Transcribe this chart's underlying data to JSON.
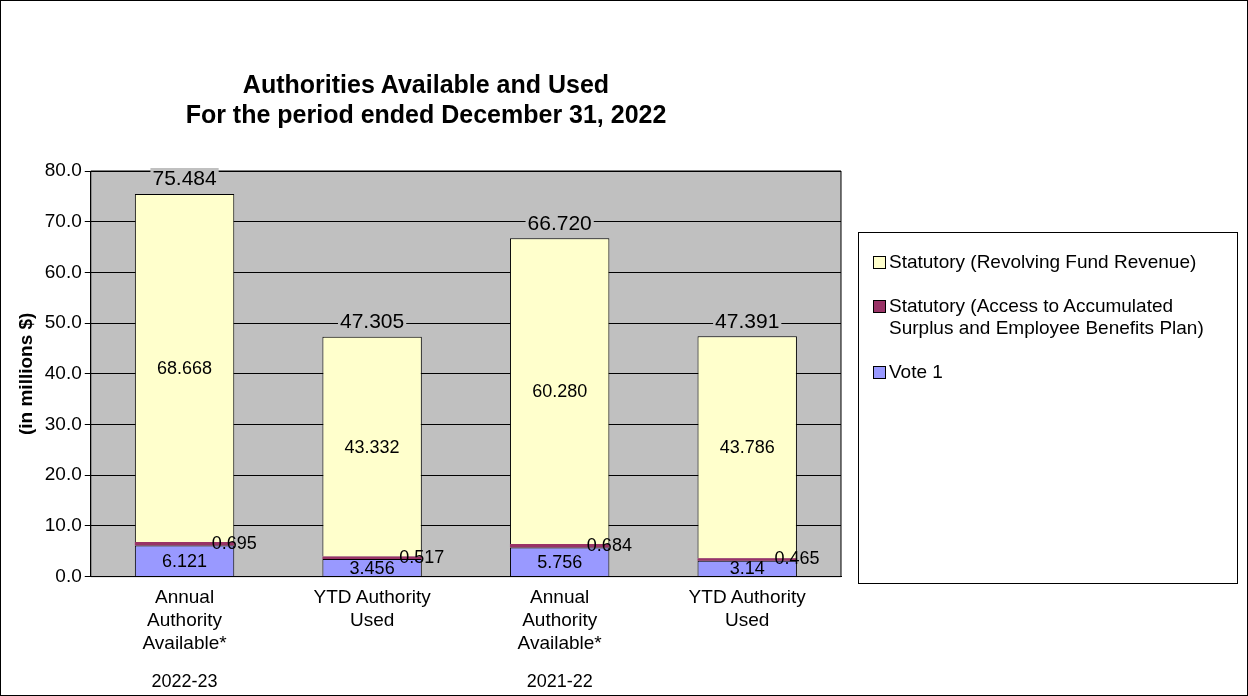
{
  "chart_data": {
    "type": "bar",
    "title": "Authorities Available and Used\nFor the period ended December 31, 2022",
    "ylabel": "(in millions $)",
    "categories": [
      "Annual Authority Available*",
      "YTD Authority Used",
      "Annual Authority Available*",
      "YTD Authority Used"
    ],
    "series": [
      {
        "name": "Vote 1",
        "color": "#9999ff",
        "values": [
          6.121,
          3.456,
          5.756,
          3.14
        ],
        "value_labels": [
          "6.121",
          "3.456",
          "5.756",
          "3.14"
        ]
      },
      {
        "name": "Statutory (Access to Accumulated Surplus and Employee Benefits Plan)",
        "color": "#993366",
        "values": [
          0.695,
          0.517,
          0.684,
          0.465
        ],
        "value_labels": [
          "0.695",
          "0.517",
          "0.684",
          "0.465"
        ]
      },
      {
        "name": "Statutory (Revolving Fund Revenue)",
        "color": "#ffffcc",
        "values": [
          68.668,
          43.332,
          60.28,
          43.786
        ],
        "value_labels": [
          "68.668",
          "43.332",
          "60.280",
          "43.786"
        ]
      }
    ],
    "stacked": true,
    "totals": [
      "75.484",
      "47.305",
      "66.720",
      "47.391"
    ],
    "ylim": [
      0,
      80
    ],
    "yticks": [
      {
        "value": 0,
        "label": "0.0"
      },
      {
        "value": 10,
        "label": "10.0"
      },
      {
        "value": 20,
        "label": "20.0"
      },
      {
        "value": 30,
        "label": "30.0"
      },
      {
        "value": 40,
        "label": "40.0"
      },
      {
        "value": 50,
        "label": "50.0"
      },
      {
        "value": 60,
        "label": "60.0"
      },
      {
        "value": 70,
        "label": "70.0"
      },
      {
        "value": 80,
        "label": "80.0"
      }
    ],
    "grid": "y",
    "legend": "right",
    "annotations": [
      "2022-23",
      "2021-22"
    ]
  }
}
